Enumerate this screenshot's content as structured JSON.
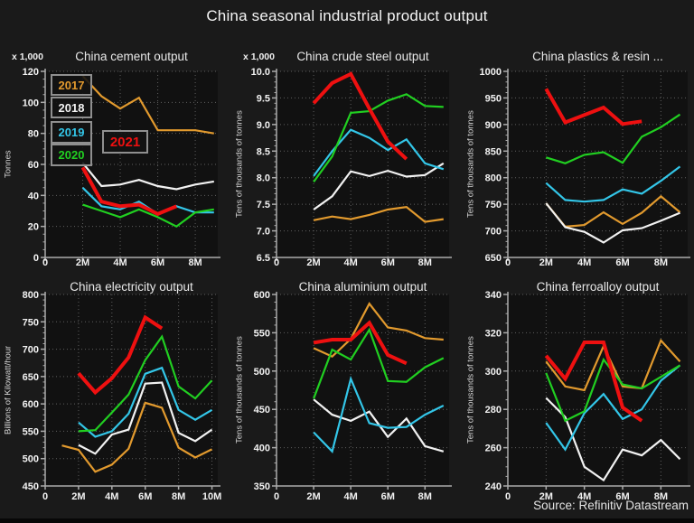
{
  "page": {
    "title": "China seasonal industrial product output",
    "source": "Source: Refinitiv Datastream",
    "colors": {
      "page_bg": "#1a1a1a",
      "plot_bg": "#111111",
      "grid": "#5f5f5f",
      "axis": "#ababab",
      "tick_text": "#f2f2f2"
    }
  },
  "legend": {
    "box_border": "#8f8f8f",
    "items": [
      {
        "label": "2017",
        "color": "#e29a2e"
      },
      {
        "label": "2018",
        "color": "#f2f2f2"
      },
      {
        "label": "2019",
        "color": "#33c6e8"
      },
      {
        "label": "2020",
        "color": "#21cf21"
      },
      {
        "label": "2021",
        "color": "#ee1010"
      }
    ]
  },
  "chart_data": [
    {
      "type": "line",
      "title": "China cement output",
      "unit_label": "x 1,000",
      "ylabel": "Tonnes",
      "ylim": [
        0,
        120
      ],
      "yticks": [
        0,
        20,
        40,
        60,
        80,
        100,
        120
      ],
      "ytick_labels": [
        "0",
        "20",
        "40",
        "60",
        "80",
        "100",
        "120"
      ],
      "y_minor_step": 5,
      "xticks": [
        0,
        2,
        4,
        6,
        8
      ],
      "xtick_labels": [
        "0",
        "2M",
        "4M",
        "6M",
        "8M"
      ],
      "xmax": 9.2,
      "series": [
        {
          "name": "2017",
          "x": [
            2,
            3,
            4,
            5,
            6,
            7,
            8,
            9
          ],
          "y": [
            117,
            104,
            96,
            103,
            82,
            82,
            82,
            80
          ]
        },
        {
          "name": "2018",
          "x": [
            2,
            3,
            4,
            5,
            6,
            7,
            8,
            9
          ],
          "y": [
            61,
            46,
            47,
            50,
            46,
            44,
            47,
            49
          ]
        },
        {
          "name": "2019",
          "x": [
            2,
            3,
            4,
            5,
            6,
            7,
            8,
            9
          ],
          "y": [
            45,
            33,
            31,
            36,
            28,
            33,
            29,
            29
          ]
        },
        {
          "name": "2020",
          "x": [
            2,
            3,
            4,
            5,
            6,
            7,
            8,
            9
          ],
          "y": [
            34,
            30,
            26,
            31,
            26,
            20,
            29,
            31
          ]
        },
        {
          "name": "2021",
          "x": [
            2,
            3,
            4,
            5,
            6,
            7
          ],
          "y": [
            58,
            36,
            33,
            34,
            28,
            33
          ]
        }
      ]
    },
    {
      "type": "line",
      "title": "China crude steel output",
      "unit_label": "x 1,000",
      "ylabel": "Tens of thousands of tonnes",
      "ylim": [
        6.5,
        10.0
      ],
      "yticks": [
        6.5,
        7.0,
        7.5,
        8.0,
        8.5,
        9.0,
        9.5,
        10.0
      ],
      "ytick_labels": [
        "6.5",
        "7.0",
        "7.5",
        "8.0",
        "8.5",
        "9.0",
        "9.5",
        "10.0"
      ],
      "y_minor_step": 0.1,
      "xticks": [
        0,
        2,
        4,
        6,
        8
      ],
      "xtick_labels": [
        "0",
        "2M",
        "4M",
        "6M",
        "8M"
      ],
      "xmax": 9.3,
      "series": [
        {
          "name": "2017",
          "x": [
            2,
            3,
            4,
            5,
            6,
            7,
            8,
            9
          ],
          "y": [
            7.2,
            7.27,
            7.22,
            7.3,
            7.4,
            7.45,
            7.17,
            7.22
          ]
        },
        {
          "name": "2018",
          "x": [
            2,
            3,
            4,
            5,
            6,
            7,
            8,
            9
          ],
          "y": [
            7.4,
            7.65,
            8.12,
            8.03,
            8.13,
            8.02,
            8.05,
            8.27
          ]
        },
        {
          "name": "2019",
          "x": [
            2,
            3,
            4,
            5,
            6,
            7,
            8,
            9
          ],
          "y": [
            8.03,
            8.5,
            8.9,
            8.75,
            8.52,
            8.72,
            8.27,
            8.16
          ]
        },
        {
          "name": "2020",
          "x": [
            2,
            3,
            4,
            5,
            6,
            7,
            8,
            9
          ],
          "y": [
            7.92,
            8.4,
            9.22,
            9.25,
            9.45,
            9.57,
            9.35,
            9.33
          ]
        },
        {
          "name": "2021",
          "x": [
            2,
            3,
            4,
            5,
            6,
            7
          ],
          "y": [
            9.4,
            9.78,
            9.95,
            9.3,
            8.68,
            8.35
          ]
        }
      ]
    },
    {
      "type": "line",
      "title": "China plastics & resin ...",
      "unit_label": "",
      "ylabel": "Tens of thousands of tonnes",
      "ylim": [
        650,
        1000
      ],
      "yticks": [
        650,
        700,
        750,
        800,
        850,
        900,
        950,
        1000
      ],
      "ytick_labels": [
        "650",
        "700",
        "750",
        "800",
        "850",
        "900",
        "950",
        "1000"
      ],
      "y_minor_step": 10,
      "xticks": [
        0,
        2,
        4,
        6,
        8
      ],
      "xtick_labels": [
        "0",
        "2M",
        "4M",
        "6M",
        "8M"
      ],
      "xmax": 9.4,
      "series": [
        {
          "name": "2017",
          "x": [
            2,
            3,
            4,
            5,
            6,
            7,
            8,
            9
          ],
          "y": [
            752,
            708,
            711,
            735,
            713,
            734,
            765,
            735
          ]
        },
        {
          "name": "2018",
          "x": [
            2,
            3,
            4,
            5,
            6,
            7,
            8,
            9
          ],
          "y": [
            752,
            707,
            698,
            678,
            701,
            705,
            719,
            734
          ]
        },
        {
          "name": "2019",
          "x": [
            2,
            3,
            4,
            5,
            6,
            7,
            8,
            9
          ],
          "y": [
            790,
            758,
            755,
            758,
            778,
            770,
            794,
            821
          ]
        },
        {
          "name": "2020",
          "x": [
            2,
            3,
            4,
            5,
            6,
            7,
            8,
            9
          ],
          "y": [
            838,
            827,
            843,
            848,
            828,
            877,
            895,
            919
          ]
        },
        {
          "name": "2021",
          "x": [
            2,
            3,
            4,
            5,
            6,
            7
          ],
          "y": [
            967,
            904,
            918,
            932,
            901,
            906
          ]
        }
      ]
    },
    {
      "type": "line",
      "title": "China electricity output",
      "unit_label": "",
      "ylabel": "Billions of Kilowatt/hour",
      "ylim": [
        450,
        800
      ],
      "yticks": [
        450,
        500,
        550,
        600,
        650,
        700,
        750,
        800
      ],
      "ytick_labels": [
        "450",
        "500",
        "550",
        "600",
        "650",
        "700",
        "750",
        "800"
      ],
      "y_minor_step": 10,
      "xticks": [
        0,
        2,
        4,
        6,
        8,
        10
      ],
      "xtick_labels": [
        "0",
        "2M",
        "4M",
        "6M",
        "8M",
        "10M"
      ],
      "xmax": 10.35,
      "series": [
        {
          "name": "2017",
          "x": [
            1,
            2,
            3,
            4,
            5,
            6,
            7,
            8,
            9,
            10
          ],
          "y": [
            524,
            516,
            476,
            489,
            518,
            602,
            593,
            520,
            502,
            517
          ]
        },
        {
          "name": "2018",
          "x": [
            2,
            3,
            4,
            5,
            6,
            7,
            8,
            9,
            10
          ],
          "y": [
            525,
            509,
            544,
            553,
            637,
            639,
            547,
            532,
            553
          ]
        },
        {
          "name": "2019",
          "x": [
            2,
            3,
            4,
            5,
            6,
            7,
            8,
            9,
            10
          ],
          "y": [
            566,
            540,
            550,
            582,
            655,
            666,
            589,
            571,
            589
          ]
        },
        {
          "name": "2020",
          "x": [
            2,
            3,
            4,
            5,
            6,
            7,
            8,
            9,
            10
          ],
          "y": [
            550,
            552,
            584,
            617,
            680,
            723,
            632,
            610,
            643
          ]
        },
        {
          "name": "2021",
          "x": [
            2,
            3,
            4,
            5,
            6,
            7
          ],
          "y": [
            656,
            621,
            647,
            685,
            758,
            738
          ]
        }
      ]
    },
    {
      "type": "line",
      "title": "China aluminium output",
      "unit_label": "",
      "ylabel": "Tens of thousands of tonnes",
      "ylim": [
        350,
        600
      ],
      "yticks": [
        350,
        400,
        450,
        500,
        550,
        600
      ],
      "ytick_labels": [
        "350",
        "400",
        "450",
        "500",
        "550",
        "600"
      ],
      "y_minor_step": 10,
      "xticks": [
        0,
        2,
        4,
        6,
        8
      ],
      "xtick_labels": [
        "0",
        "2M",
        "4M",
        "6M",
        "8M"
      ],
      "xmax": 9.3,
      "series": [
        {
          "name": "2017",
          "x": [
            2,
            3,
            4,
            5,
            6,
            7,
            8,
            9
          ],
          "y": [
            530,
            519,
            542,
            588,
            557,
            553,
            543,
            541
          ]
        },
        {
          "name": "2018",
          "x": [
            2,
            3,
            4,
            5,
            6,
            7,
            8,
            9
          ],
          "y": [
            463,
            443,
            435,
            447,
            414,
            438,
            402,
            395
          ]
        },
        {
          "name": "2019",
          "x": [
            2,
            3,
            4,
            5,
            6,
            7,
            8,
            9
          ],
          "y": [
            420,
            395,
            490,
            432,
            426,
            427,
            443,
            455
          ]
        },
        {
          "name": "2020",
          "x": [
            2,
            3,
            4,
            5,
            6,
            7,
            8,
            9
          ],
          "y": [
            464,
            528,
            515,
            554,
            487,
            486,
            505,
            517
          ]
        },
        {
          "name": "2021",
          "x": [
            2,
            3,
            4,
            5,
            6,
            7
          ],
          "y": [
            537,
            541,
            541,
            563,
            521,
            510
          ]
        }
      ]
    },
    {
      "type": "line",
      "title": "China ferroalloy output",
      "unit_label": "",
      "ylabel": "Tens of thousands of tonnes",
      "ylim": [
        240,
        340
      ],
      "yticks": [
        240,
        260,
        280,
        300,
        320,
        340
      ],
      "ytick_labels": [
        "240",
        "260",
        "280",
        "300",
        "320",
        "340"
      ],
      "y_minor_step": 5,
      "xticks": [
        0,
        2,
        4,
        6,
        8
      ],
      "xtick_labels": [
        "0",
        "2M",
        "4M",
        "6M",
        "8M"
      ],
      "xmax": 9.4,
      "series": [
        {
          "name": "2017",
          "x": [
            2,
            3,
            4,
            5,
            6,
            7,
            8,
            9
          ],
          "y": [
            305,
            292,
            290,
            313,
            292,
            291,
            316,
            305
          ]
        },
        {
          "name": "2018",
          "x": [
            2,
            3,
            4,
            5,
            6,
            7,
            8,
            9
          ],
          "y": [
            286,
            276,
            250,
            243,
            259,
            256,
            264,
            254
          ]
        },
        {
          "name": "2019",
          "x": [
            2,
            3,
            4,
            5,
            6,
            7,
            8,
            9
          ],
          "y": [
            273,
            259,
            278,
            288,
            275,
            280,
            295,
            303
          ]
        },
        {
          "name": "2020",
          "x": [
            2,
            3,
            4,
            5,
            6,
            7,
            8,
            9
          ],
          "y": [
            299,
            274,
            279,
            306,
            293,
            291,
            297,
            303
          ]
        },
        {
          "name": "2021",
          "x": [
            2,
            3,
            4,
            5,
            6,
            7
          ],
          "y": [
            308,
            296,
            315,
            315,
            281,
            274
          ]
        }
      ]
    }
  ]
}
